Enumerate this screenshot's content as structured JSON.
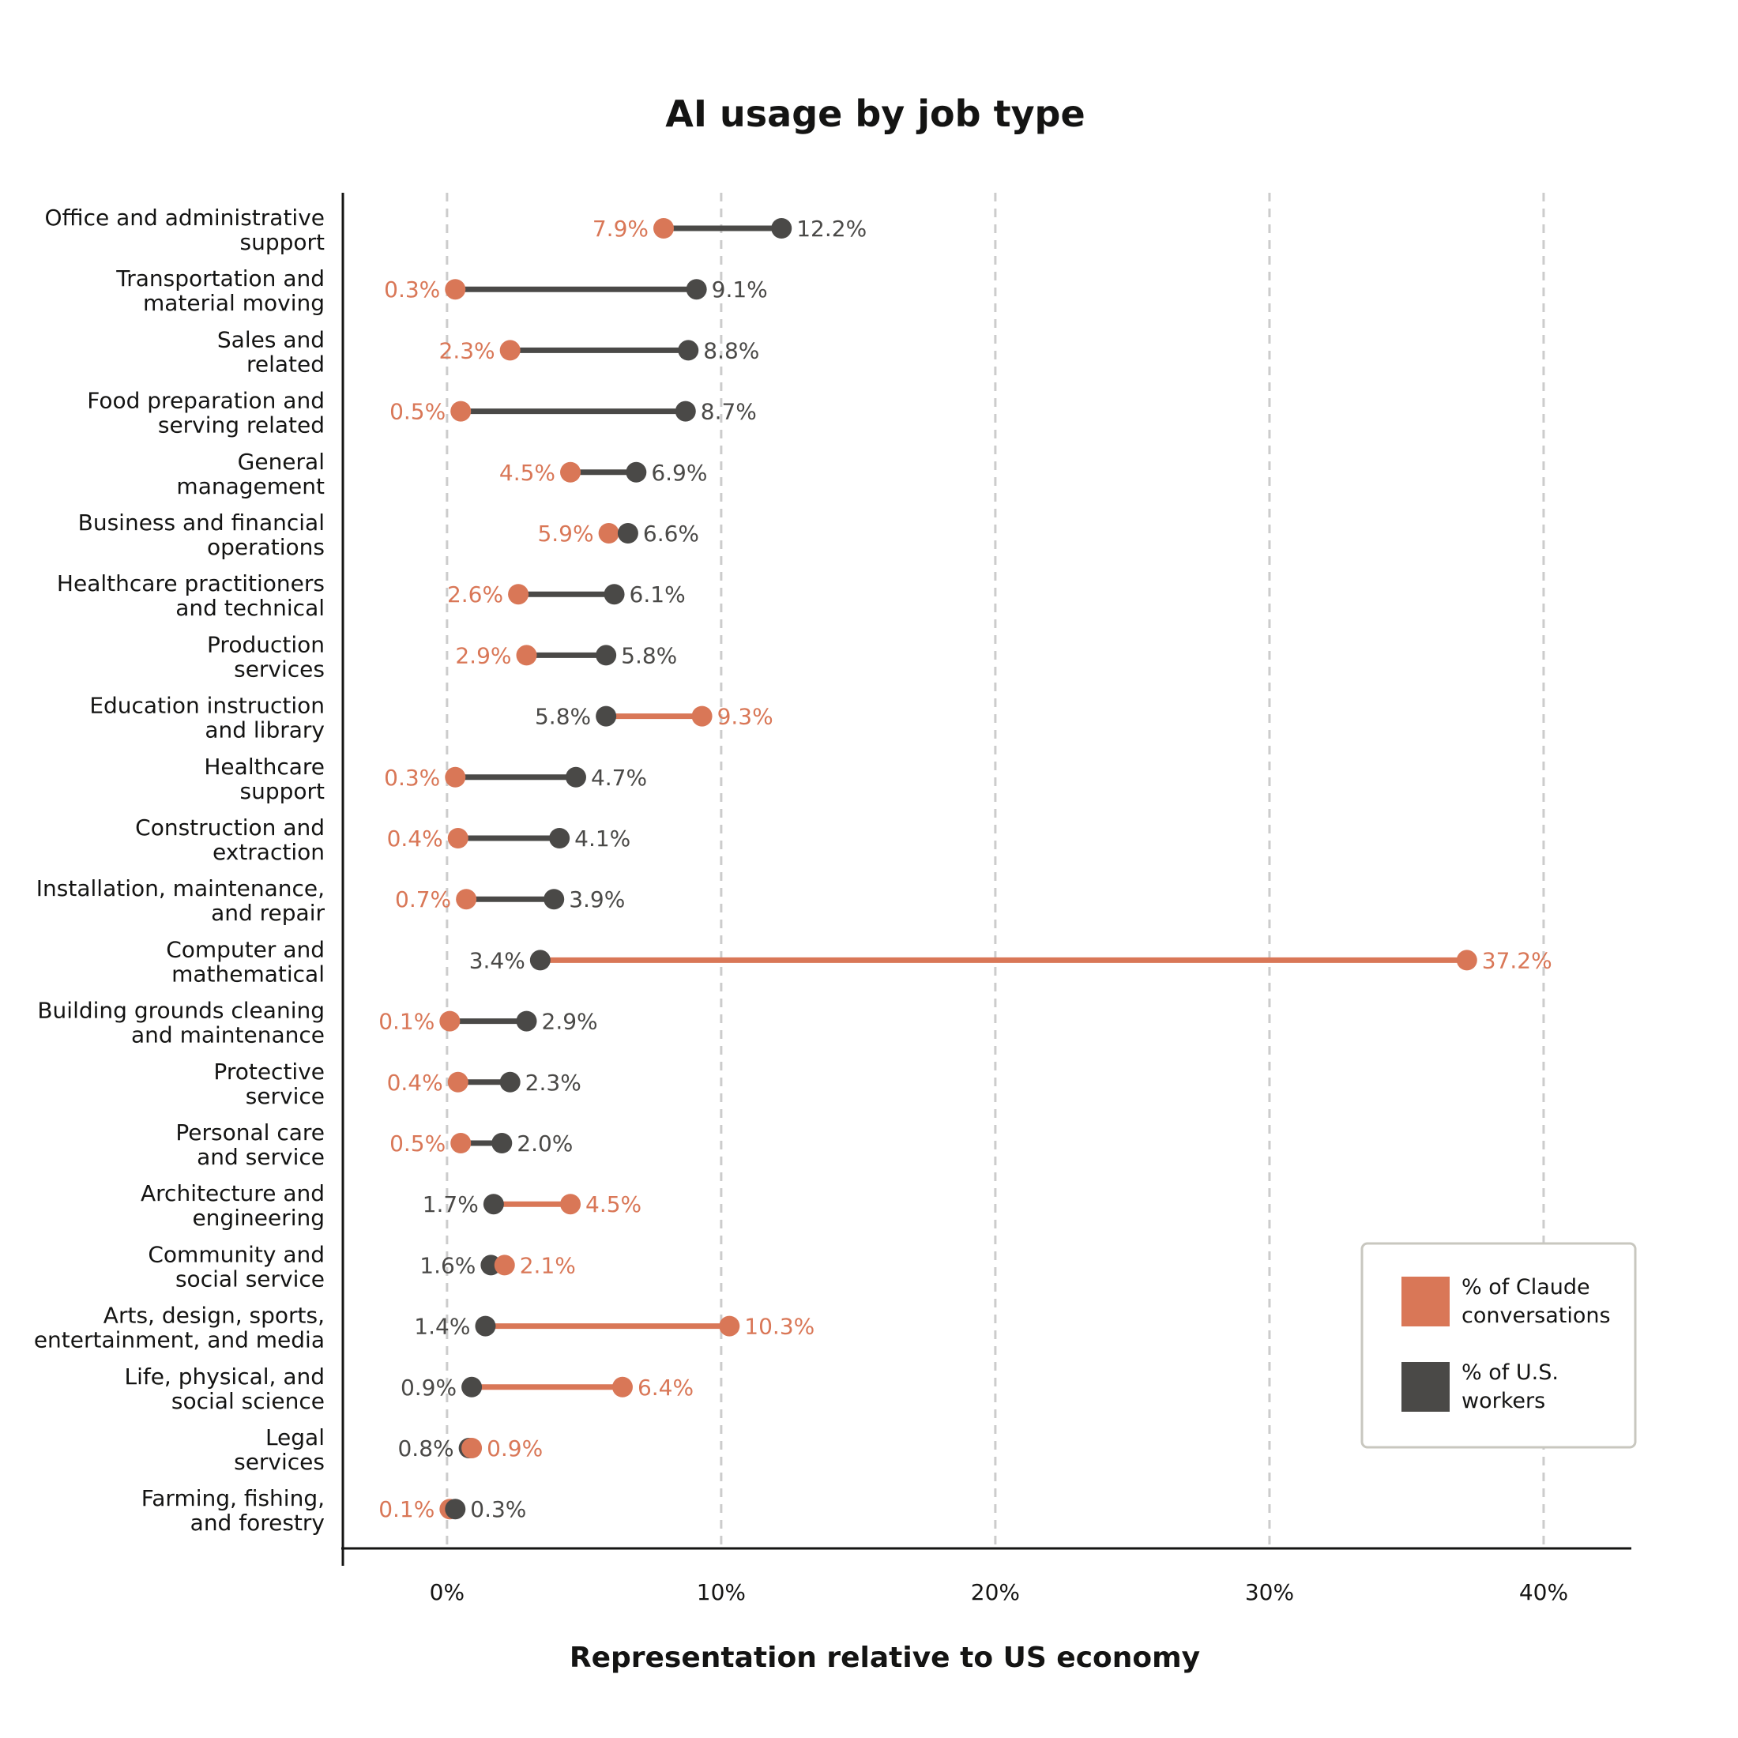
{
  "chart_data": {
    "type": "dumbbell",
    "title": "AI usage by job type",
    "xlabel": "Representation relative to US economy",
    "ylabel": "",
    "xlim": [
      -3.8,
      43.2
    ],
    "xticks": [
      0,
      10,
      20,
      30,
      40
    ],
    "xtick_labels": [
      "0%",
      "10%",
      "20%",
      "30%",
      "40%"
    ],
    "grid": "vertical dashed",
    "legend_position": "bottom-right",
    "colors": {
      "claude": "#d97757",
      "workers": "#4a4947",
      "grid": "#cccccc",
      "axis": "#141413",
      "legend_border": "#c8c7bf"
    },
    "series": [
      {
        "name": "% of Claude conversations",
        "legend": [
          "% of Claude",
          "conversations"
        ],
        "color": "#d97757"
      },
      {
        "name": "% of U.S. workers",
        "legend": [
          "% of U.S.",
          "workers"
        ],
        "color": "#4a4947"
      }
    ],
    "categories": [
      {
        "lines": [
          "Office and administrative",
          "support"
        ],
        "claude": 7.9,
        "workers": 12.2,
        "claude_label": "7.9%",
        "workers_label": "12.2%"
      },
      {
        "lines": [
          "Transportation and",
          "material moving"
        ],
        "claude": 0.3,
        "workers": 9.1,
        "claude_label": "0.3%",
        "workers_label": "9.1%"
      },
      {
        "lines": [
          "Sales and",
          "related"
        ],
        "claude": 2.3,
        "workers": 8.8,
        "claude_label": "2.3%",
        "workers_label": "8.8%"
      },
      {
        "lines": [
          "Food preparation and",
          "serving related"
        ],
        "claude": 0.5,
        "workers": 8.7,
        "claude_label": "0.5%",
        "workers_label": "8.7%"
      },
      {
        "lines": [
          "General",
          "management"
        ],
        "claude": 4.5,
        "workers": 6.9,
        "claude_label": "4.5%",
        "workers_label": "6.9%"
      },
      {
        "lines": [
          "Business and financial",
          "operations"
        ],
        "claude": 5.9,
        "workers": 6.6,
        "claude_label": "5.9%",
        "workers_label": "6.6%"
      },
      {
        "lines": [
          "Healthcare practitioners",
          "and technical"
        ],
        "claude": 2.6,
        "workers": 6.1,
        "claude_label": "2.6%",
        "workers_label": "6.1%"
      },
      {
        "lines": [
          "Production",
          "services"
        ],
        "claude": 2.9,
        "workers": 5.8,
        "claude_label": "2.9%",
        "workers_label": "5.8%"
      },
      {
        "lines": [
          "Education instruction",
          "and library"
        ],
        "claude": 9.3,
        "workers": 5.8,
        "claude_label": "9.3%",
        "workers_label": "5.8%"
      },
      {
        "lines": [
          "Healthcare",
          "support"
        ],
        "claude": 0.3,
        "workers": 4.7,
        "claude_label": "0.3%",
        "workers_label": "4.7%"
      },
      {
        "lines": [
          "Construction and",
          "extraction"
        ],
        "claude": 0.4,
        "workers": 4.1,
        "claude_label": "0.4%",
        "workers_label": "4.1%"
      },
      {
        "lines": [
          "Installation, maintenance,",
          "and repair"
        ],
        "claude": 0.7,
        "workers": 3.9,
        "claude_label": "0.7%",
        "workers_label": "3.9%"
      },
      {
        "lines": [
          "Computer and",
          "mathematical"
        ],
        "claude": 37.2,
        "workers": 3.4,
        "claude_label": "37.2%",
        "workers_label": "3.4%"
      },
      {
        "lines": [
          "Building grounds cleaning",
          "and maintenance"
        ],
        "claude": 0.1,
        "workers": 2.9,
        "claude_label": "0.1%",
        "workers_label": "2.9%"
      },
      {
        "lines": [
          "Protective",
          "service"
        ],
        "claude": 0.4,
        "workers": 2.3,
        "claude_label": "0.4%",
        "workers_label": "2.3%"
      },
      {
        "lines": [
          "Personal care",
          "and service"
        ],
        "claude": 0.5,
        "workers": 2.0,
        "claude_label": "0.5%",
        "workers_label": "2.0%"
      },
      {
        "lines": [
          "Architecture and",
          "engineering"
        ],
        "claude": 4.5,
        "workers": 1.7,
        "claude_label": "4.5%",
        "workers_label": "1.7%"
      },
      {
        "lines": [
          "Community and",
          "social service"
        ],
        "claude": 2.1,
        "workers": 1.6,
        "claude_label": "2.1%",
        "workers_label": "1.6%"
      },
      {
        "lines": [
          "Arts, design, sports,",
          "entertainment, and media"
        ],
        "claude": 10.3,
        "workers": 1.4,
        "claude_label": "10.3%",
        "workers_label": "1.4%"
      },
      {
        "lines": [
          "Life, physical, and",
          "social science"
        ],
        "claude": 6.4,
        "workers": 0.9,
        "claude_label": "6.4%",
        "workers_label": "0.9%"
      },
      {
        "lines": [
          "Legal",
          "services"
        ],
        "claude": 0.9,
        "workers": 0.8,
        "claude_label": "0.9%",
        "workers_label": "0.8%"
      },
      {
        "lines": [
          "Farming, fishing,",
          "and forestry"
        ],
        "claude": 0.1,
        "workers": 0.3,
        "claude_label": "0.1%",
        "workers_label": "0.3%"
      }
    ]
  }
}
